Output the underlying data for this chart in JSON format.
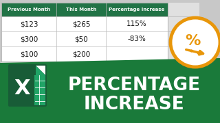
{
  "bg_color": "#c8c8c8",
  "table_bg": "#ffffff",
  "header_bg": "#217346",
  "header_text_color": "#ffffff",
  "cell_text_color": "#111111",
  "headers": [
    "Previous Month",
    "This Month",
    "Percentage Increase"
  ],
  "rows": [
    [
      "$123",
      "$265",
      "115%"
    ],
    [
      "$300",
      "$50",
      "-83%"
    ],
    [
      "$100",
      "$200",
      ""
    ]
  ],
  "banner_color": "#1a7a3a",
  "banner_text1": "PERCENTAGE",
  "banner_text2": "INCREASE",
  "banner_text_color": "#ffffff",
  "excel_dark_green": "#185c37",
  "excel_light_green": "#21a366",
  "accent_orange": "#e8960a",
  "grid_color": "#bbbbbb",
  "right_bg": "#e0e0e0"
}
